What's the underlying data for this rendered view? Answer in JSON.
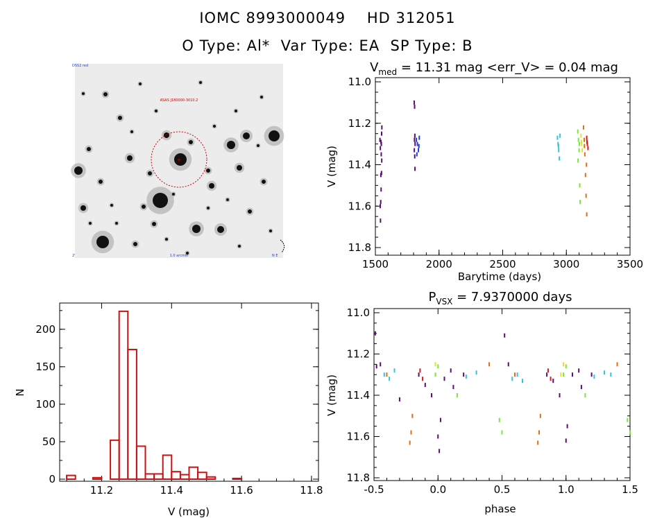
{
  "header": {
    "line1": "IOMC 8993000049    HD 312051",
    "line2": "O Type: Al*  Var Type: EA  SP Type: B"
  },
  "colors": {
    "hist": "#cc1111",
    "circle": "#cc0000",
    "series": [
      "#5b0a78",
      "#1c3fd6",
      "#2cc7d8",
      "#7ae832",
      "#e8e020",
      "#e86a10",
      "#d81818"
    ]
  },
  "sky_image": {
    "label_top_left": "DSS2 red",
    "label_center": "ASAS J180000-3010.2",
    "label_bottom_left": "2'",
    "label_bottom_center": "1.0 arcmin",
    "label_bottom_right": "N E",
    "center_marker": "+"
  },
  "chart_data": [
    {
      "id": "lightcurve",
      "type": "scatter",
      "title_base": "V",
      "title_sub": "med",
      "title_rest": " = 11.31 mag <err_V> = 0.04 mag",
      "xlabel": "Barytime (days)",
      "ylabel": "V (mag)",
      "xlim": [
        1500,
        3500
      ],
      "ylim": [
        11.8,
        11.0
      ],
      "xticks": [
        "1500",
        "2000",
        "2500",
        "3000",
        "3500"
      ],
      "yticks": [
        "11.0",
        "11.2",
        "11.4",
        "11.6",
        "11.8"
      ],
      "series": [
        {
          "name": "s1",
          "color_index": 0,
          "x_range": [
            1535,
            1552
          ],
          "points": [
            [
              1540,
              11.67
            ],
            [
              1542,
              11.58
            ],
            [
              1545,
              11.52
            ],
            [
              1548,
              11.44
            ],
            [
              1550,
              11.38
            ],
            [
              1538,
              11.6
            ],
            [
              1543,
              11.45
            ],
            [
              1546,
              11.35
            ],
            [
              1547,
              11.3
            ],
            [
              1549,
              11.25
            ],
            [
              1551,
              11.22
            ],
            [
              1536,
              11.28
            ],
            [
              1539,
              11.32
            ],
            [
              1544,
              11.29
            ]
          ]
        },
        {
          "name": "s1b",
          "color_index": 0,
          "x_range": [
            1800,
            1820
          ],
          "points": [
            [
              1805,
              11.1
            ],
            [
              1808,
              11.12
            ],
            [
              1810,
              11.26
            ],
            [
              1812,
              11.3
            ],
            [
              1806,
              11.33
            ],
            [
              1809,
              11.36
            ],
            [
              1811,
              11.42
            ],
            [
              1807,
              11.28
            ]
          ]
        },
        {
          "name": "s2",
          "color_index": 1,
          "x_range": [
            1818,
            1850
          ],
          "points": [
            [
              1822,
              11.28
            ],
            [
              1830,
              11.3
            ],
            [
              1838,
              11.33
            ],
            [
              1845,
              11.27
            ],
            [
              1826,
              11.35
            ],
            [
              1842,
              11.31
            ]
          ]
        },
        {
          "name": "s3",
          "color_index": 2,
          "x_range": [
            2925,
            2955
          ],
          "points": [
            [
              2930,
              11.27
            ],
            [
              2935,
              11.3
            ],
            [
              2940,
              11.33
            ],
            [
              2945,
              11.37
            ],
            [
              2950,
              11.26
            ],
            [
              2938,
              11.31
            ]
          ]
        },
        {
          "name": "s4",
          "color_index": 3,
          "x_range": [
            3085,
            3110
          ],
          "points": [
            [
              3090,
              11.24
            ],
            [
              3095,
              11.28
            ],
            [
              3100,
              11.33
            ],
            [
              3105,
              11.5
            ],
            [
              3108,
              11.58
            ],
            [
              3092,
              11.38
            ],
            [
              3102,
              11.3
            ]
          ]
        },
        {
          "name": "s5",
          "color_index": 4,
          "x_range": [
            3110,
            3130
          ],
          "points": [
            [
              3115,
              11.26
            ],
            [
              3120,
              11.3
            ],
            [
              3125,
              11.33
            ],
            [
              3118,
              11.29
            ]
          ]
        },
        {
          "name": "s6",
          "color_index": 5,
          "x_range": [
            3130,
            3165
          ],
          "points": [
            [
              3135,
              11.22
            ],
            [
              3140,
              11.28
            ],
            [
              3145,
              11.35
            ],
            [
              3150,
              11.45
            ],
            [
              3155,
              11.55
            ],
            [
              3160,
              11.64
            ],
            [
              3142,
              11.31
            ],
            [
              3158,
              11.4
            ]
          ]
        },
        {
          "name": "s7",
          "color_index": 6,
          "x_range": [
            3155,
            3175
          ],
          "points": [
            [
              3160,
              11.27
            ],
            [
              3165,
              11.3
            ],
            [
              3170,
              11.32
            ],
            [
              3162,
              11.29
            ]
          ]
        }
      ]
    },
    {
      "id": "histogram",
      "type": "bar",
      "xlabel": "V (mag)",
      "ylabel": "N",
      "xlim": [
        11.08,
        11.82
      ],
      "ylim": [
        0,
        235
      ],
      "xticks": [
        "11.2",
        "11.4",
        "11.6",
        "11.8"
      ],
      "yticks": [
        "0",
        "50",
        "100",
        "150",
        "200"
      ],
      "bin_width": 0.025,
      "bins": [
        [
          11.1,
          5
        ],
        [
          11.125,
          0
        ],
        [
          11.15,
          0
        ],
        [
          11.175,
          2
        ],
        [
          11.2,
          0
        ],
        [
          11.225,
          52
        ],
        [
          11.25,
          224
        ],
        [
          11.275,
          173
        ],
        [
          11.3,
          44
        ],
        [
          11.325,
          7
        ],
        [
          11.35,
          7
        ],
        [
          11.375,
          32
        ],
        [
          11.4,
          10
        ],
        [
          11.425,
          6
        ],
        [
          11.45,
          16
        ],
        [
          11.475,
          9
        ],
        [
          11.5,
          3
        ],
        [
          11.525,
          0
        ],
        [
          11.55,
          0
        ],
        [
          11.575,
          1
        ]
      ]
    },
    {
      "id": "phased",
      "type": "scatter",
      "title_base": "P",
      "title_sub": "VSX",
      "title_rest": " = 7.9370000 days",
      "xlabel": "phase",
      "ylabel": "V (mag)",
      "xlim": [
        -0.5,
        1.5
      ],
      "ylim": [
        11.8,
        11.0
      ],
      "xticks": [
        "-0.5",
        "0.0",
        "0.5",
        "1.0",
        "1.5"
      ],
      "yticks": [
        "11.0",
        "11.2",
        "11.4",
        "11.6",
        "11.8"
      ],
      "series": [
        {
          "name": "p1",
          "color_index": 0,
          "points": [
            [
              -0.49,
              11.1
            ],
            [
              0.52,
              11.11
            ],
            [
              0.01,
              11.67
            ],
            [
              0.0,
              11.6
            ],
            [
              0.02,
              11.52
            ],
            [
              1.0,
              11.62
            ],
            [
              1.01,
              11.55
            ],
            [
              -0.3,
              11.42
            ],
            [
              -0.15,
              11.3
            ],
            [
              -0.1,
              11.35
            ],
            [
              0.05,
              11.32
            ],
            [
              0.1,
              11.28
            ],
            [
              0.12,
              11.36
            ],
            [
              0.2,
              11.3
            ],
            [
              0.85,
              11.3
            ],
            [
              0.9,
              11.33
            ],
            [
              1.05,
              11.3
            ],
            [
              1.1,
              11.28
            ],
            [
              1.12,
              11.36
            ],
            [
              1.2,
              11.3
            ],
            [
              -0.45,
              11.25
            ],
            [
              -0.05,
              11.4
            ],
            [
              0.95,
              11.4
            ],
            [
              0.55,
              11.25
            ],
            [
              -0.48,
              11.26
            ]
          ]
        },
        {
          "name": "p2",
          "color_index": 2,
          "points": [
            [
              -0.42,
              11.3
            ],
            [
              -0.38,
              11.32
            ],
            [
              -0.34,
              11.28
            ],
            [
              0.22,
              11.31
            ],
            [
              0.3,
              11.29
            ],
            [
              0.58,
              11.32
            ],
            [
              0.62,
              11.3
            ],
            [
              0.66,
              11.33
            ],
            [
              1.22,
              11.31
            ],
            [
              1.3,
              11.29
            ],
            [
              1.35,
              11.3
            ]
          ]
        },
        {
          "name": "p3",
          "color_index": 3,
          "points": [
            [
              0.0,
              11.26
            ],
            [
              0.15,
              11.4
            ],
            [
              0.48,
              11.52
            ],
            [
              0.5,
              11.58
            ],
            [
              1.0,
              11.26
            ],
            [
              1.15,
              11.4
            ],
            [
              1.48,
              11.52
            ],
            [
              1.5,
              11.58
            ],
            [
              -0.02,
              11.3
            ],
            [
              0.98,
              11.3
            ]
          ]
        },
        {
          "name": "p4",
          "color_index": 4,
          "points": [
            [
              -0.02,
              11.25
            ],
            [
              0.98,
              11.25
            ],
            [
              0.96,
              11.3
            ]
          ]
        },
        {
          "name": "p5",
          "color_index": 5,
          "points": [
            [
              -0.2,
              11.5
            ],
            [
              -0.21,
              11.58
            ],
            [
              -0.22,
              11.63
            ],
            [
              0.4,
              11.25
            ],
            [
              0.8,
              11.5
            ],
            [
              0.79,
              11.58
            ],
            [
              0.78,
              11.63
            ],
            [
              1.4,
              11.25
            ],
            [
              -0.4,
              11.3
            ],
            [
              0.6,
              11.3
            ]
          ]
        },
        {
          "name": "p6",
          "color_index": 6,
          "points": [
            [
              -0.14,
              11.28
            ],
            [
              -0.12,
              11.32
            ],
            [
              0.86,
              11.28
            ],
            [
              0.88,
              11.32
            ]
          ]
        }
      ]
    }
  ]
}
